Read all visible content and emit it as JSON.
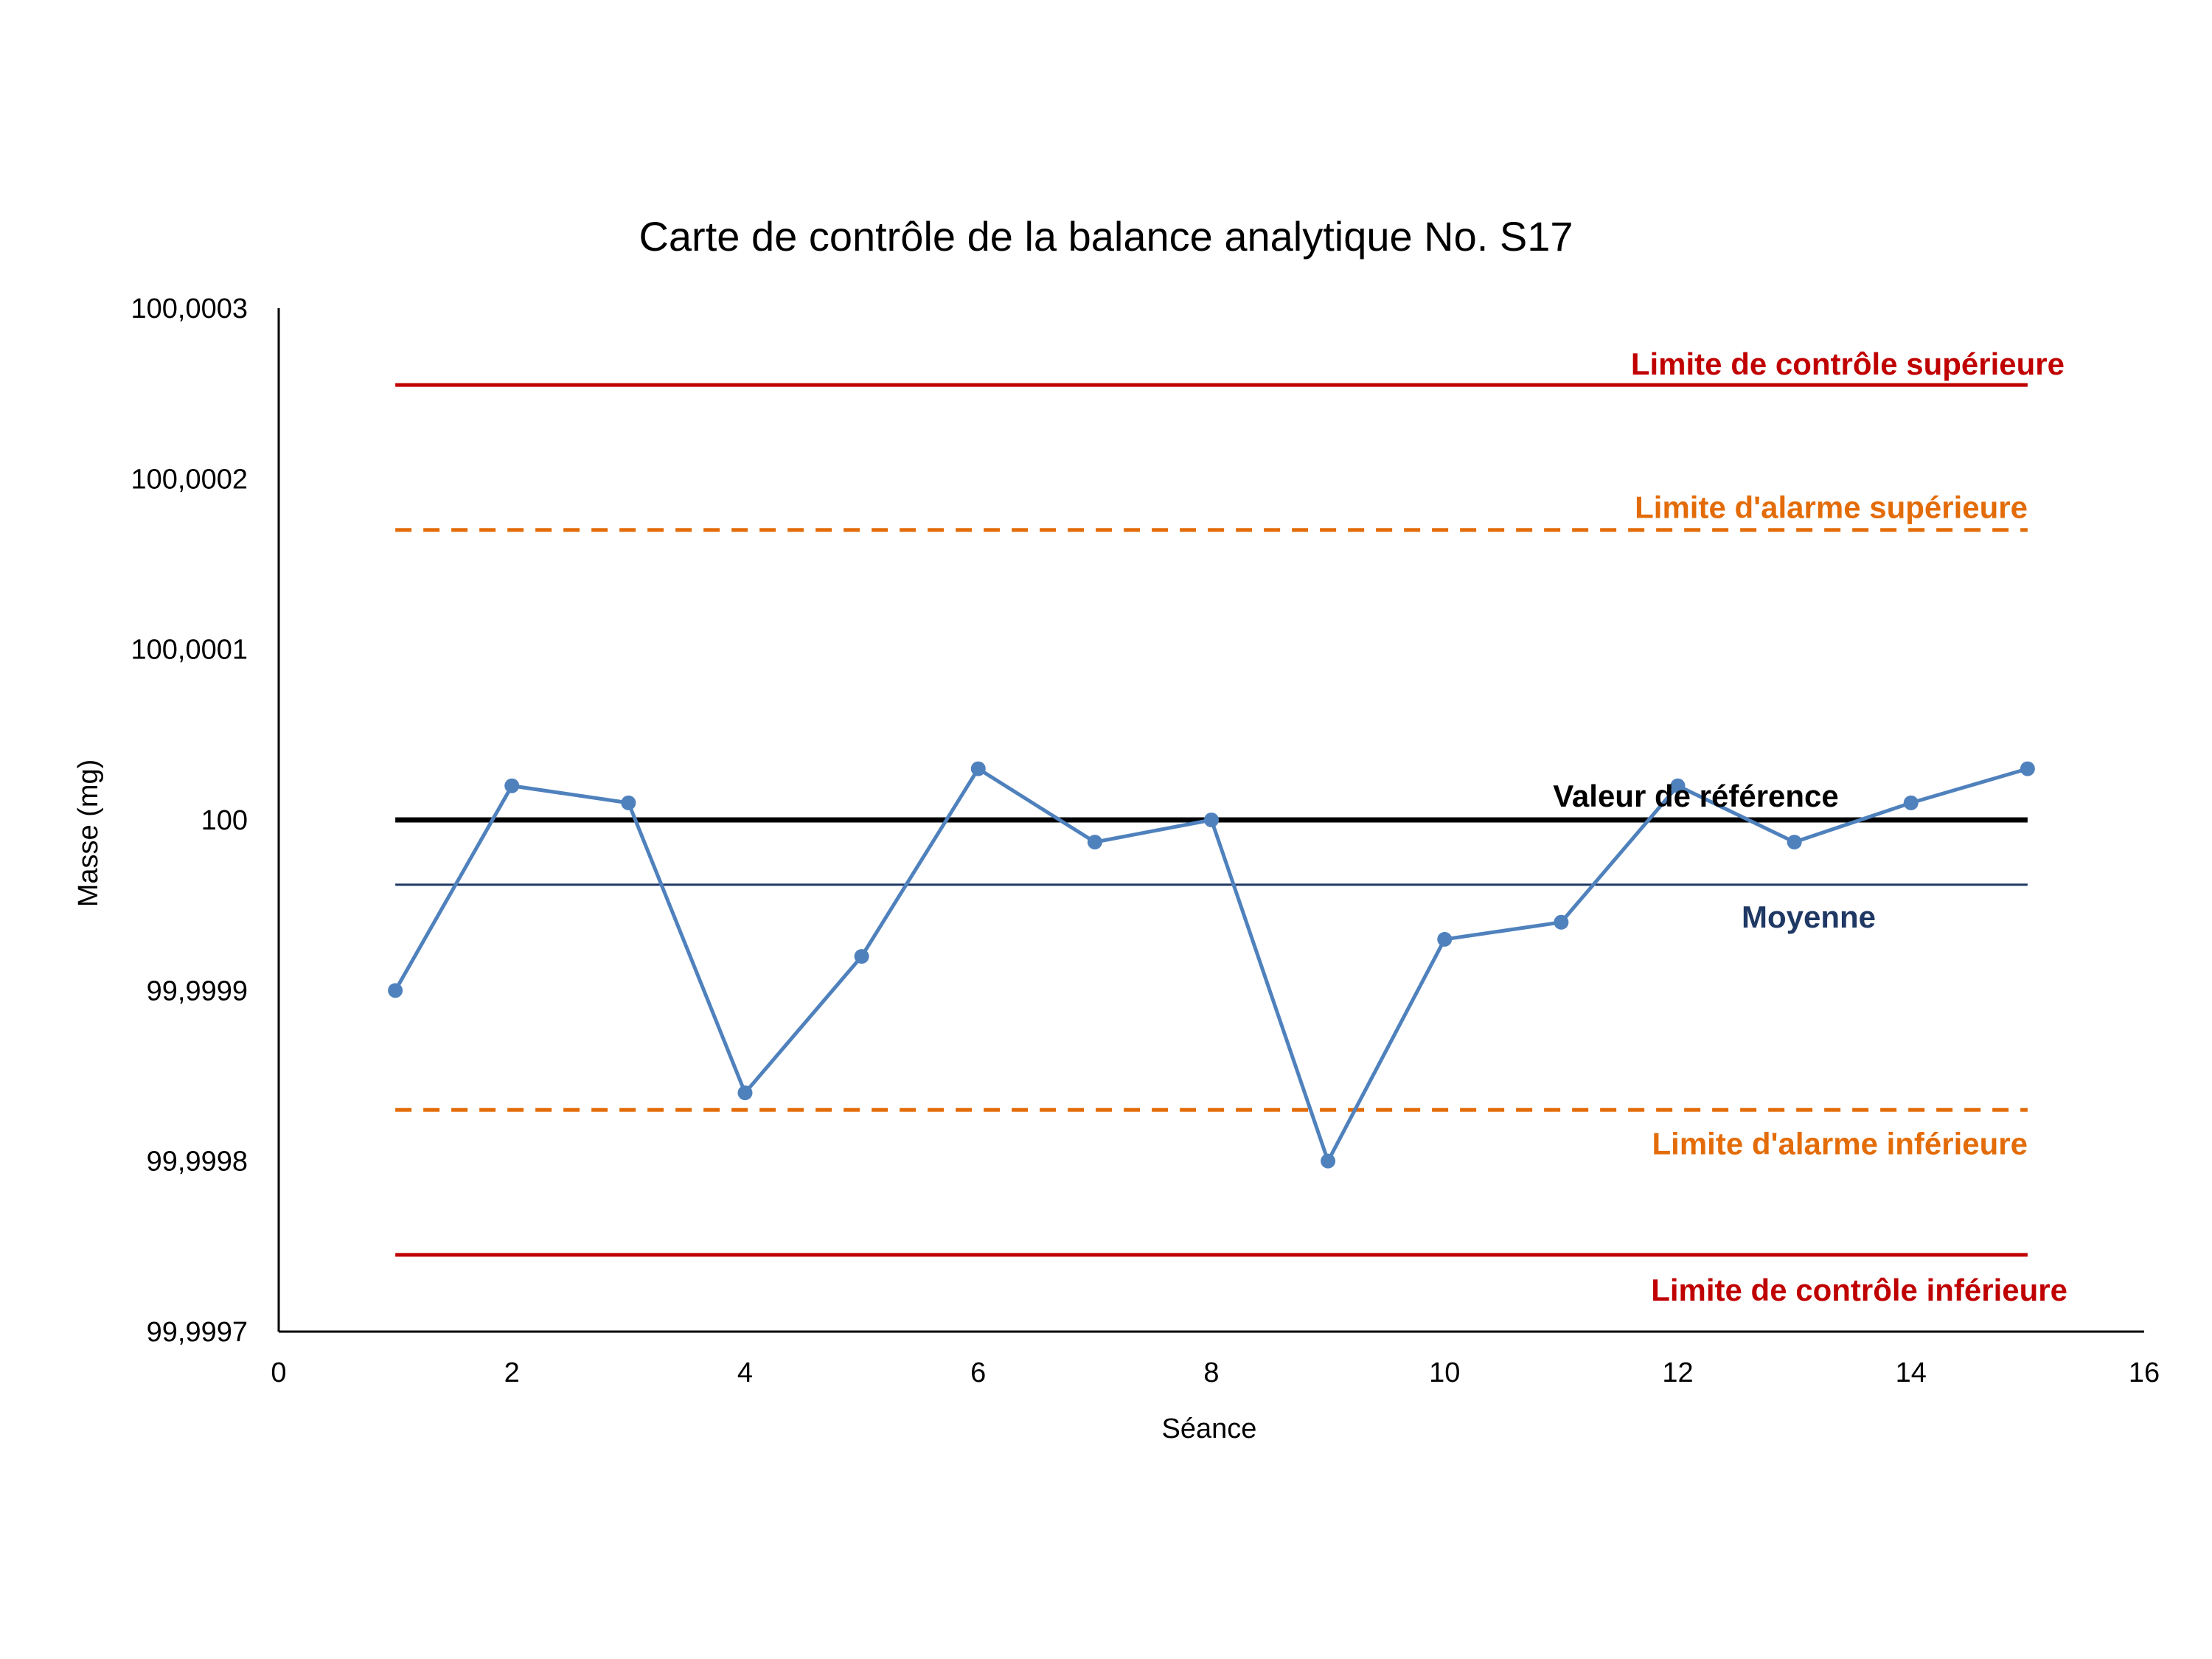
{
  "chart_data": {
    "type": "line",
    "title": "Carte de contrôle de la balance analytique No. S17",
    "xlabel": "Séance",
    "ylabel": "Masse (mg)",
    "xlim": [
      0,
      16
    ],
    "ylim": [
      99.9997,
      100.0003
    ],
    "x_ticks": [
      "0",
      "2",
      "4",
      "6",
      "8",
      "10",
      "12",
      "14",
      "16"
    ],
    "y_ticks": [
      "99,9997",
      "99,9998",
      "99,9999",
      "100",
      "100,0001",
      "100,0002",
      "100,0003"
    ],
    "grid": false,
    "series": [
      {
        "color": "#4f81bd",
        "marker": "circle",
        "x": [
          1,
          2,
          3,
          4,
          5,
          6,
          7,
          8,
          9,
          10,
          11,
          12,
          13,
          14,
          15
        ],
        "y": [
          99.9999,
          100.00002,
          100.00001,
          99.99984,
          99.99992,
          100.00003,
          99.999987,
          100.0,
          99.9998,
          99.99993,
          99.99994,
          100.00002,
          99.999987,
          100.00001,
          100.00003
        ]
      }
    ],
    "reference_lines": [
      {
        "label": "Limite de contrôle supérieure",
        "y": 100.000255,
        "x_range": [
          1,
          15
        ],
        "color": "#c00000",
        "style": "solid"
      },
      {
        "label": "Limite d'alarme supérieure",
        "y": 100.00017,
        "x_range": [
          1,
          15
        ],
        "color": "#e36c09",
        "style": "dashed"
      },
      {
        "label": "Valeur de référence",
        "y": 100.0,
        "x_range": [
          1,
          15
        ],
        "color": "#000000",
        "style": "solid"
      },
      {
        "label": "Moyenne",
        "y": 99.999962,
        "x_range": [
          1,
          15
        ],
        "color": "#1f3864",
        "style": "solid"
      },
      {
        "label": "Limite d'alarme inférieure",
        "y": 99.99983,
        "x_range": [
          1,
          15
        ],
        "color": "#e36c09",
        "style": "dashed"
      },
      {
        "label": "Limite de contrôle inférieure",
        "y": 99.999745,
        "x_range": [
          1,
          15
        ],
        "color": "#c00000",
        "style": "solid"
      }
    ]
  }
}
